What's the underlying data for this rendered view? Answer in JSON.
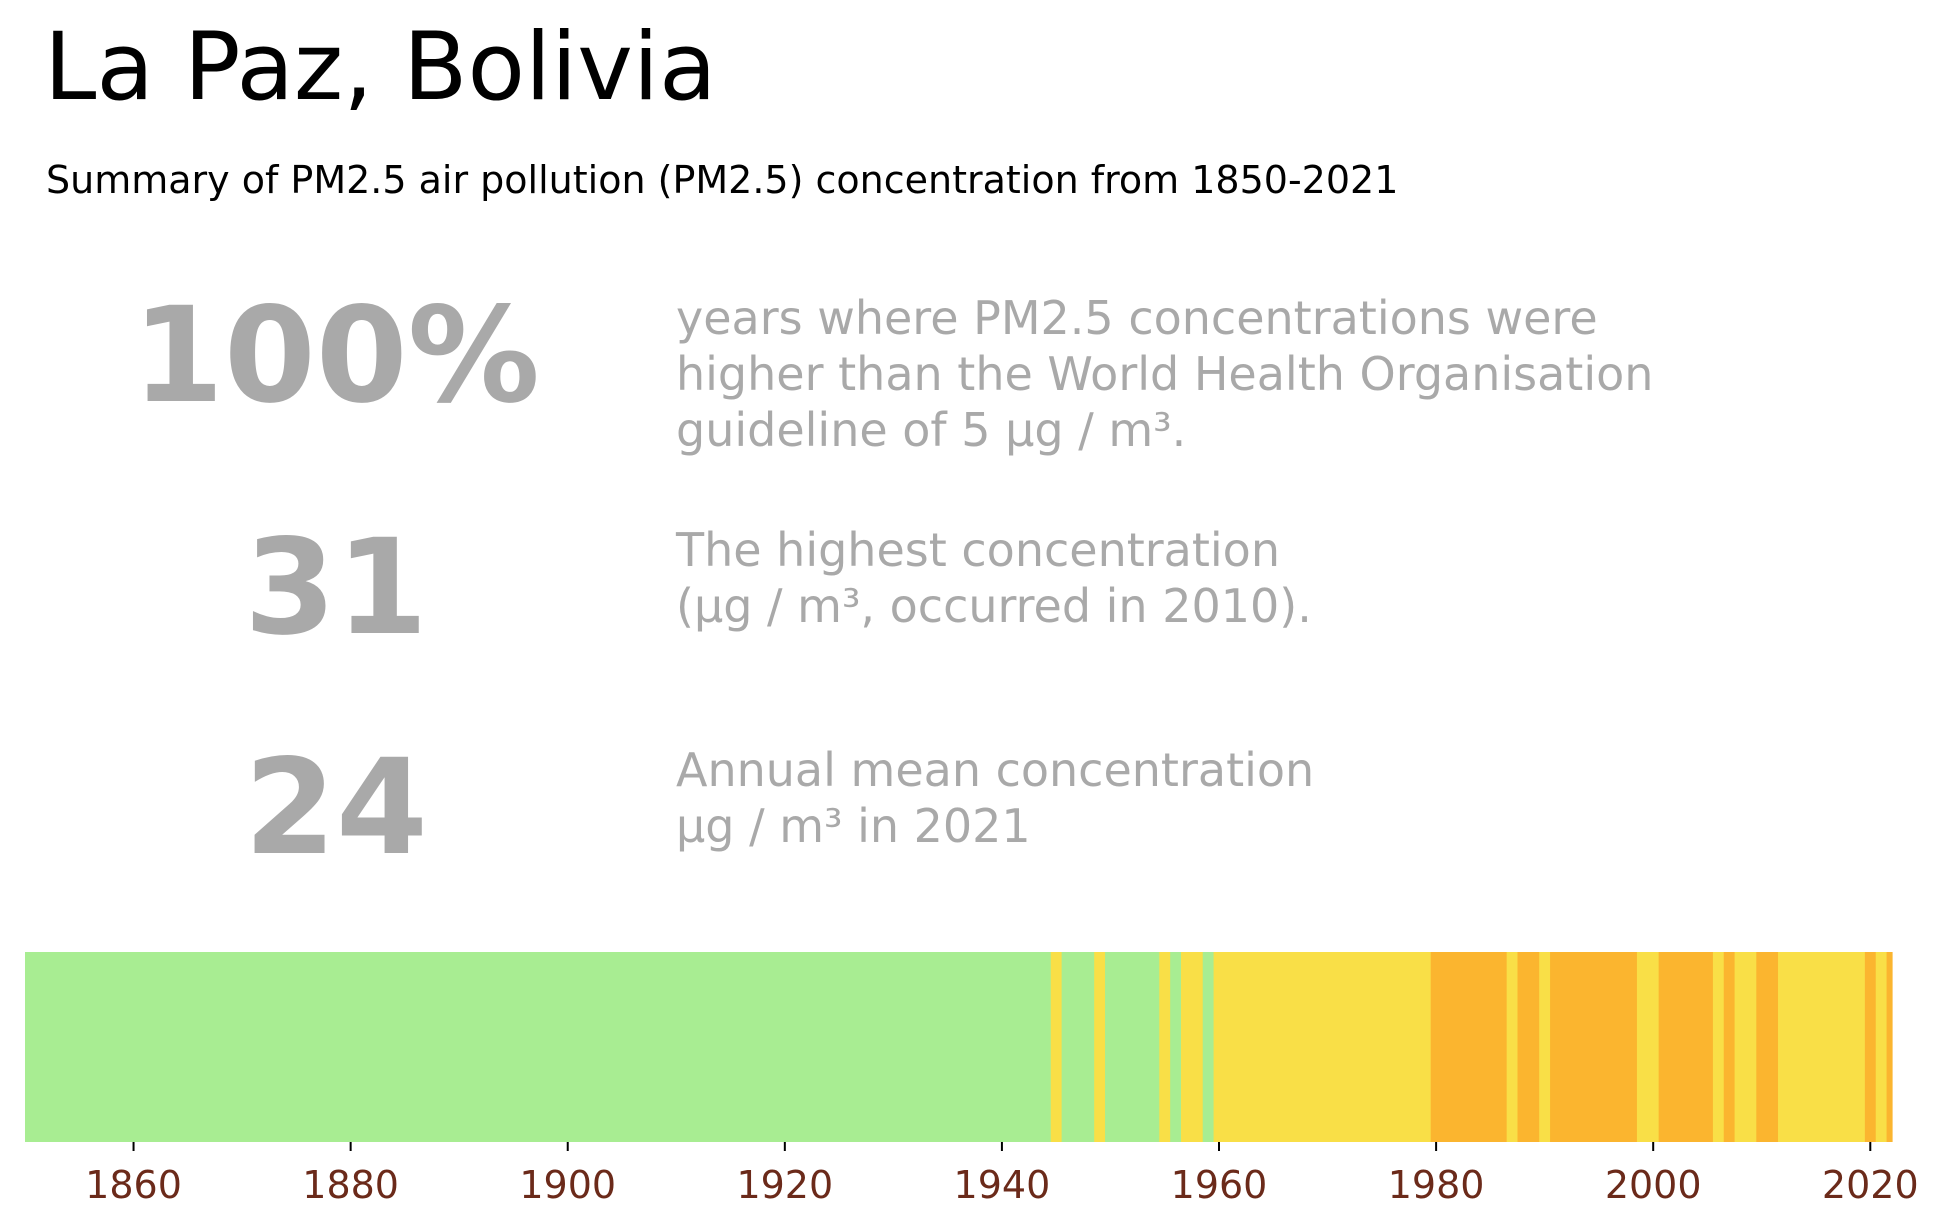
{
  "header": {
    "title": "La Paz, Bolivia",
    "subtitle": "Summary of PM2.5 air pollution (PM2.5) concentration from 1850-2021"
  },
  "stats": [
    {
      "value": "100%",
      "description": "years where PM2.5 concentrations were\nhigher than the World Health Organisation\nguideline of 5 µg / m³."
    },
    {
      "value": "31",
      "description": "The highest concentration\n(µg / m³, occurred in 2010)."
    },
    {
      "value": "24",
      "description": "Annual mean concentration\nµg / m³ in 2021"
    }
  ],
  "colors": {
    "stat_text": "#a9a9a9",
    "tick_label": "#6b2a1a",
    "green": "#a8ed92",
    "yellow": "#f9df47",
    "orange": "#fbb52f"
  },
  "chart_data": {
    "type": "heatmap",
    "title": "",
    "xlabel": "",
    "ylabel": "",
    "xlim": [
      1850,
      2022
    ],
    "x_ticks": [
      1860,
      1880,
      1900,
      1920,
      1940,
      1960,
      1980,
      2000,
      2020
    ],
    "grid": false,
    "legend": "none",
    "segments": [
      {
        "start": 1850,
        "end": 1944.5,
        "level": "green"
      },
      {
        "start": 1944.5,
        "end": 1945.5,
        "level": "yellow"
      },
      {
        "start": 1945.5,
        "end": 1948.5,
        "level": "green"
      },
      {
        "start": 1948.5,
        "end": 1949.5,
        "level": "yellow"
      },
      {
        "start": 1949.5,
        "end": 1954.5,
        "level": "green"
      },
      {
        "start": 1954.5,
        "end": 1955.5,
        "level": "yellow"
      },
      {
        "start": 1955.5,
        "end": 1956.5,
        "level": "green"
      },
      {
        "start": 1956.5,
        "end": 1958.5,
        "level": "yellow"
      },
      {
        "start": 1958.5,
        "end": 1959.5,
        "level": "green"
      },
      {
        "start": 1959.5,
        "end": 1979.5,
        "level": "yellow"
      },
      {
        "start": 1979.5,
        "end": 1986.5,
        "level": "orange"
      },
      {
        "start": 1986.5,
        "end": 1987.5,
        "level": "yellow"
      },
      {
        "start": 1987.5,
        "end": 1989.5,
        "level": "orange"
      },
      {
        "start": 1989.5,
        "end": 1990.5,
        "level": "yellow"
      },
      {
        "start": 1990.5,
        "end": 1998.5,
        "level": "orange"
      },
      {
        "start": 1998.5,
        "end": 2000.5,
        "level": "yellow"
      },
      {
        "start": 2000.5,
        "end": 2005.5,
        "level": "orange"
      },
      {
        "start": 2005.5,
        "end": 2006.5,
        "level": "yellow"
      },
      {
        "start": 2006.5,
        "end": 2007.5,
        "level": "orange"
      },
      {
        "start": 2007.5,
        "end": 2009.5,
        "level": "yellow"
      },
      {
        "start": 2009.5,
        "end": 2011.5,
        "level": "orange"
      },
      {
        "start": 2011.5,
        "end": 2019.5,
        "level": "yellow"
      },
      {
        "start": 2019.5,
        "end": 2020.5,
        "level": "orange"
      },
      {
        "start": 2020.5,
        "end": 2021.5,
        "level": "yellow"
      },
      {
        "start": 2021.5,
        "end": 2022,
        "level": "orange"
      }
    ]
  }
}
